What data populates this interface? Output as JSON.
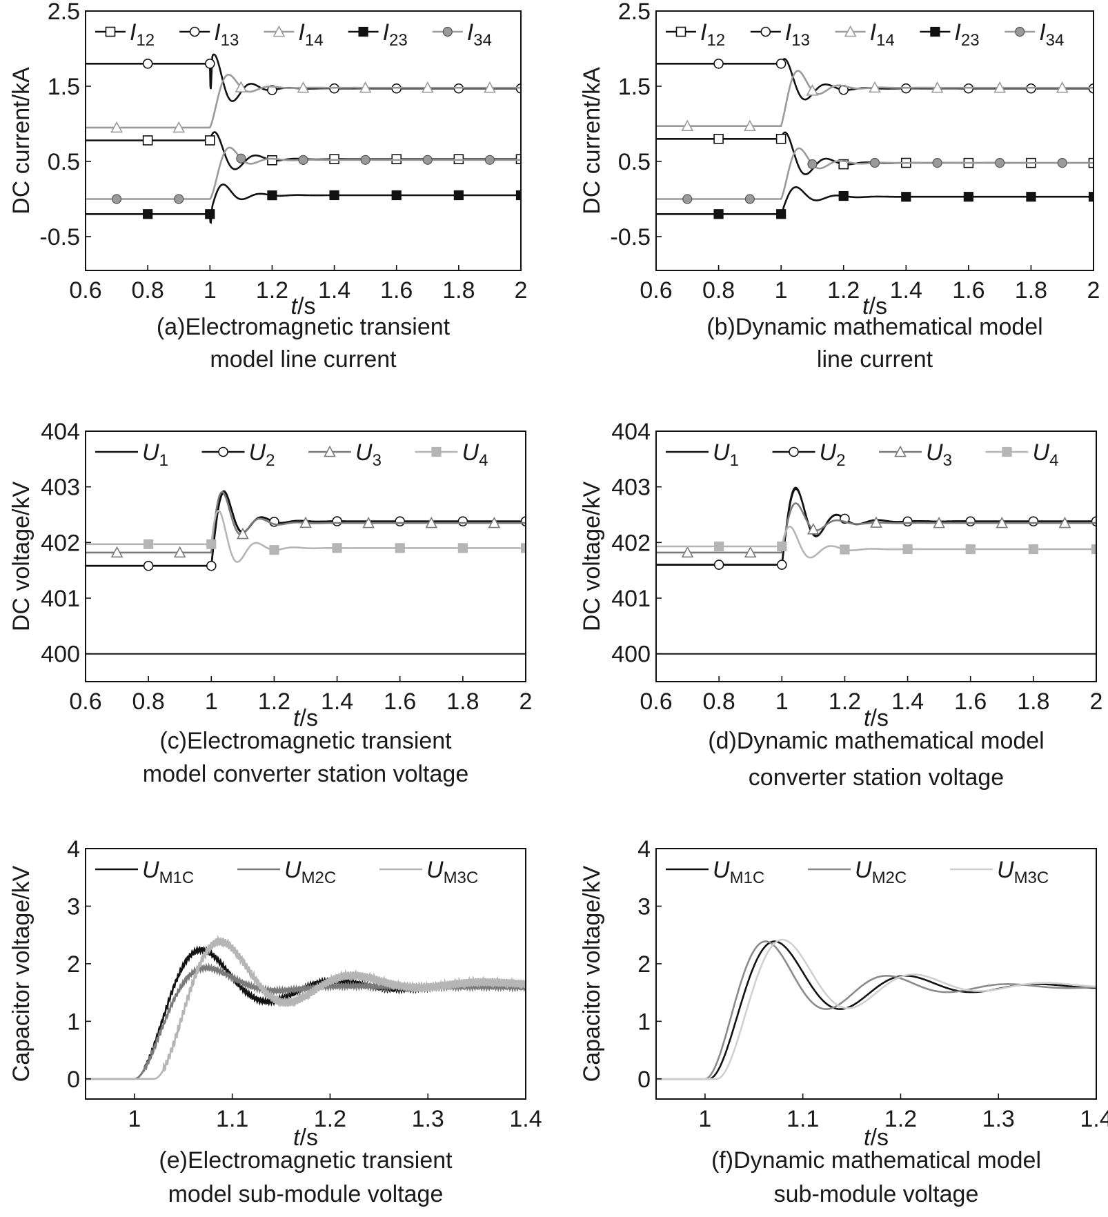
{
  "colors": {
    "black": "#111111",
    "darkgray": "#7a7a7a",
    "gray": "#a6a6a6",
    "lightgray": "#cfcfcf"
  },
  "chart_data": [
    {
      "type": "line",
      "id": "a",
      "caption": [
        "(a)Electromagnetic transient",
        "model line current"
      ],
      "xlabel_italic": "t",
      "xlabel_unit": "/s",
      "ylabel": "DC current/kA",
      "xlim": [
        0.6,
        2
      ],
      "ylim": [
        -0.95,
        2.5
      ],
      "xticks": [
        0.6,
        0.8,
        1,
        1.2,
        1.4,
        1.6,
        1.8,
        2
      ],
      "xtick_labels": [
        "0.6",
        "0.8",
        "1",
        "1.2",
        "1.4",
        "1.6",
        "1.8",
        "2"
      ],
      "yticks": [
        2.5,
        1.5,
        0.5,
        -0.5
      ],
      "ytick_labels": [
        "2.5",
        "1.5",
        "0.5",
        "-0.5"
      ],
      "legend": [
        {
          "main": "I",
          "sub": "12",
          "marker": "square-open",
          "color": "#111111"
        },
        {
          "main": "I",
          "sub": "13",
          "marker": "circle-open",
          "color": "#111111"
        },
        {
          "main": "I",
          "sub": "14",
          "marker": "triangle-open",
          "color": "#9a9a9a"
        },
        {
          "main": "I",
          "sub": "23",
          "marker": "square-filled",
          "color": "#111111"
        },
        {
          "main": "I",
          "sub": "34",
          "marker": "circle-filled",
          "color": "#9a9a9a"
        }
      ],
      "series": [
        {
          "name": "I12",
          "pre": 0.78,
          "post": 0.53,
          "amp": 0.32,
          "wn": 50,
          "zeta": 0.3,
          "dip": 0.0,
          "marker": "square-open",
          "color": "#111111",
          "marker_x": [
            0.8,
            1.0,
            1.2,
            1.4,
            1.6,
            1.8,
            2.0
          ]
        },
        {
          "name": "I13",
          "pre": 1.8,
          "post": 1.47,
          "amp": 0.38,
          "wn": 55,
          "zeta": 0.3,
          "dip": -0.9,
          "marker": "circle-open",
          "color": "#111111",
          "marker_x": [
            0.8,
            1.0,
            1.2,
            1.4,
            1.6,
            1.8,
            2.0
          ]
        },
        {
          "name": "I14",
          "pre": 0.95,
          "post": 1.48,
          "amp": 0.18,
          "wn": 50,
          "zeta": 0.35,
          "dip": 0.0,
          "marker": "triangle-open",
          "color": "#9a9a9a",
          "marker_x": [
            0.7,
            0.9,
            1.1,
            1.3,
            1.5,
            1.7,
            1.9
          ]
        },
        {
          "name": "I23",
          "pre": -0.2,
          "post": 0.05,
          "amp": 0.25,
          "wn": 55,
          "zeta": 0.3,
          "dip": -0.35,
          "marker": "square-filled",
          "color": "#111111",
          "marker_x": [
            0.8,
            1.0,
            1.2,
            1.4,
            1.6,
            1.8,
            2.0
          ]
        },
        {
          "name": "I34",
          "pre": 0.0,
          "post": 0.52,
          "amp": 0.1,
          "wn": 50,
          "zeta": 0.35,
          "dip": 0.0,
          "marker": "circle-filled",
          "color": "#9a9a9a",
          "marker_x": [
            0.7,
            0.9,
            1.1,
            1.3,
            1.5,
            1.7,
            1.9
          ]
        }
      ]
    },
    {
      "type": "line",
      "id": "b",
      "caption": [
        "(b)Dynamic mathematical model",
        "line current"
      ],
      "xlabel_italic": "t",
      "xlabel_unit": "/s",
      "ylabel": "DC current/kA",
      "xlim": [
        0.6,
        2
      ],
      "ylim": [
        -0.95,
        2.5
      ],
      "xticks": [
        0.6,
        0.8,
        1,
        1.2,
        1.4,
        1.6,
        1.8,
        2
      ],
      "xtick_labels": [
        "0.6",
        "0.8",
        "1",
        "1.2",
        "1.4",
        "1.6",
        "1.8",
        "2"
      ],
      "yticks": [
        2.5,
        1.5,
        0.5,
        -0.5
      ],
      "ytick_labels": [
        "2.5",
        "1.5",
        "0.5",
        "-0.5"
      ],
      "legend": [
        {
          "main": "I",
          "sub": "12",
          "marker": "square-open",
          "color": "#111111"
        },
        {
          "main": "I",
          "sub": "13",
          "marker": "circle-open",
          "color": "#111111"
        },
        {
          "main": "I",
          "sub": "14",
          "marker": "triangle-open",
          "color": "#9a9a9a"
        },
        {
          "main": "I",
          "sub": "23",
          "marker": "square-filled",
          "color": "#111111"
        },
        {
          "main": "I",
          "sub": "34",
          "marker": "circle-filled",
          "color": "#9a9a9a"
        }
      ],
      "series": [
        {
          "name": "I12",
          "pre": 0.8,
          "post": 0.48,
          "amp": 0.3,
          "wn": 50,
          "zeta": 0.3,
          "dip": 0.0,
          "marker": "square-open",
          "color": "#111111",
          "marker_x": [
            0.8,
            1.0,
            1.2,
            1.4,
            1.6,
            1.8,
            2.0
          ]
        },
        {
          "name": "I13",
          "pre": 1.8,
          "post": 1.47,
          "amp": 0.25,
          "wn": 50,
          "zeta": 0.3,
          "dip": 0.0,
          "marker": "circle-open",
          "color": "#111111",
          "marker_x": [
            0.8,
            1.0,
            1.2,
            1.4,
            1.6,
            1.8,
            2.0
          ]
        },
        {
          "name": "I14",
          "pre": 0.97,
          "post": 1.48,
          "amp": 0.3,
          "wn": 50,
          "zeta": 0.3,
          "dip": 0.0,
          "marker": "triangle-open",
          "color": "#9a9a9a",
          "marker_x": [
            0.7,
            0.9,
            1.1,
            1.3,
            1.5,
            1.7,
            1.9
          ]
        },
        {
          "name": "I23",
          "pre": -0.2,
          "post": 0.03,
          "amp": 0.22,
          "wn": 50,
          "zeta": 0.3,
          "dip": -0.1,
          "marker": "square-filled",
          "color": "#111111",
          "marker_x": [
            0.8,
            1.0,
            1.2,
            1.4,
            1.6,
            1.8,
            2.0
          ]
        },
        {
          "name": "I34",
          "pre": 0.0,
          "post": 0.48,
          "amp": 0.2,
          "wn": 50,
          "zeta": 0.3,
          "dip": 0.0,
          "marker": "circle-filled",
          "color": "#9a9a9a",
          "marker_x": [
            0.7,
            0.9,
            1.1,
            1.3,
            1.5,
            1.7,
            1.9
          ]
        }
      ]
    },
    {
      "type": "line",
      "id": "c",
      "caption": [
        "(c)Electromagnetic transient",
        "model converter station voltage"
      ],
      "xlabel_italic": "t",
      "xlabel_unit": "/s",
      "ylabel": "DC voltage/kV",
      "xlim": [
        0.6,
        2
      ],
      "ylim": [
        399.5,
        404
      ],
      "xticks": [
        0.6,
        0.8,
        1,
        1.2,
        1.4,
        1.6,
        1.8,
        2
      ],
      "xtick_labels": [
        "0.6",
        "0.8",
        "1",
        "1.2",
        "1.4",
        "1.6",
        "1.8",
        "2"
      ],
      "yticks": [
        404,
        403,
        402,
        401,
        400
      ],
      "ytick_labels": [
        "404",
        "403",
        "402",
        "401",
        "400"
      ],
      "legend": [
        {
          "main": "U",
          "sub": "1",
          "marker": "none",
          "color": "#111111"
        },
        {
          "main": "U",
          "sub": "2",
          "marker": "circle-open",
          "color": "#111111"
        },
        {
          "main": "U",
          "sub": "3",
          "marker": "triangle-open",
          "color": "#7a7a7a"
        },
        {
          "main": "U",
          "sub": "4",
          "marker": "square-filled",
          "color": "#b5b5b5"
        }
      ],
      "series": [
        {
          "name": "U1",
          "pre": 401.58,
          "post": 402.38,
          "amp": 1.0,
          "wn": 55,
          "zeta": 0.3,
          "dip": 0.0,
          "marker": "none",
          "color": "#111111",
          "marker_x": []
        },
        {
          "name": "U2",
          "pre": 401.58,
          "post": 402.38,
          "amp": 0.95,
          "wn": 55,
          "zeta": 0.3,
          "dip": 0.0,
          "marker": "circle-open",
          "color": "#111111",
          "marker_x": [
            0.8,
            1.0,
            1.2,
            1.4,
            1.6,
            1.8,
            2.0
          ]
        },
        {
          "name": "U3",
          "pre": 401.82,
          "post": 402.35,
          "amp": 1.05,
          "wn": 55,
          "zeta": 0.3,
          "dip": 0.0,
          "marker": "triangle-open",
          "color": "#7a7a7a",
          "marker_x": [
            0.7,
            0.9,
            1.1,
            1.3,
            1.5,
            1.7,
            1.9
          ]
        },
        {
          "name": "U4",
          "pre": 401.97,
          "post": 401.9,
          "amp": 1.0,
          "wn": 55,
          "zeta": 0.3,
          "dip": 0.0,
          "marker": "square-filled",
          "color": "#b5b5b5",
          "marker_x": [
            0.8,
            1.0,
            1.2,
            1.4,
            1.6,
            1.8,
            2.0
          ]
        },
        {
          "name": "base",
          "pre": 400.0,
          "post": 400.0,
          "amp": 0.0,
          "wn": 50,
          "zeta": 0.3,
          "dip": 0.0,
          "marker": "none",
          "color": "#111111",
          "marker_x": []
        }
      ]
    },
    {
      "type": "line",
      "id": "d",
      "caption": [
        "(d)Dynamic mathematical model",
        "converter station voltage"
      ],
      "xlabel_italic": "t",
      "xlabel_unit": "/s",
      "ylabel": "DC voltage/kV",
      "xlim": [
        0.6,
        2
      ],
      "ylim": [
        399.5,
        404
      ],
      "xticks": [
        0.6,
        0.8,
        1,
        1.2,
        1.4,
        1.6,
        1.8,
        2
      ],
      "xtick_labels": [
        "0.6",
        "0.8",
        "1",
        "1.2",
        "1.4",
        "1.6",
        "1.8",
        "2"
      ],
      "yticks": [
        404,
        403,
        402,
        401,
        400
      ],
      "ytick_labels": [
        "404",
        "403",
        "402",
        "401",
        "400"
      ],
      "legend": [
        {
          "main": "U",
          "sub": "1",
          "marker": "none",
          "color": "#111111"
        },
        {
          "main": "U",
          "sub": "2",
          "marker": "circle-open",
          "color": "#111111"
        },
        {
          "main": "U",
          "sub": "3",
          "marker": "triangle-open",
          "color": "#7a7a7a"
        },
        {
          "main": "U",
          "sub": "4",
          "marker": "square-filled",
          "color": "#b5b5b5"
        }
      ],
      "series": [
        {
          "name": "U1",
          "pre": 401.6,
          "post": 402.38,
          "amp": 0.95,
          "wn": 50,
          "zeta": 0.25,
          "dip": 0.0,
          "marker": "none",
          "color": "#111111",
          "marker_x": []
        },
        {
          "name": "U2",
          "pre": 401.6,
          "post": 402.38,
          "amp": 0.9,
          "wn": 50,
          "zeta": 0.25,
          "dip": 0.0,
          "marker": "circle-open",
          "color": "#111111",
          "marker_x": [
            0.8,
            1.0,
            1.2,
            1.4,
            1.6,
            1.8,
            2.0
          ]
        },
        {
          "name": "U3",
          "pre": 401.82,
          "post": 402.35,
          "amp": 0.65,
          "wn": 50,
          "zeta": 0.3,
          "dip": 0.0,
          "marker": "triangle-open",
          "color": "#7a7a7a",
          "marker_x": [
            0.7,
            0.9,
            1.1,
            1.3,
            1.5,
            1.7,
            1.9
          ]
        },
        {
          "name": "U4",
          "pre": 401.93,
          "post": 401.88,
          "amp": 0.6,
          "wn": 50,
          "zeta": 0.3,
          "dip": 0.0,
          "marker": "square-filled",
          "color": "#b5b5b5",
          "marker_x": [
            0.8,
            1.0,
            1.2,
            1.4,
            1.6,
            1.8,
            2.0
          ]
        },
        {
          "name": "base",
          "pre": 400.0,
          "post": 400.0,
          "amp": 0.0,
          "wn": 50,
          "zeta": 0.3,
          "dip": 0.0,
          "marker": "none",
          "color": "#111111",
          "marker_x": []
        }
      ]
    },
    {
      "type": "line",
      "id": "e",
      "caption": [
        "(e)Electromagnetic transient",
        "model sub-module voltage"
      ],
      "xlabel_italic": "t",
      "xlabel_unit": "/s",
      "ylabel": "Capacitor voltage/kV",
      "xlim": [
        0.95,
        1.4
      ],
      "ylim": [
        -0.35,
        4
      ],
      "xticks": [
        1,
        1.1,
        1.2,
        1.3,
        1.4
      ],
      "xtick_labels": [
        "1",
        "1.1",
        "1.2",
        "1.3",
        "1.4"
      ],
      "yticks": [
        4,
        3,
        2,
        1,
        0
      ],
      "ytick_labels": [
        "4",
        "3",
        "2",
        "1",
        "0"
      ],
      "legend": [
        {
          "main": "U",
          "sub": "M1C",
          "marker": "none",
          "color": "#111111"
        },
        {
          "main": "U",
          "sub": "M2C",
          "marker": "none",
          "color": "#7a7a7a"
        },
        {
          "main": "U",
          "sub": "M3C",
          "marker": "none",
          "color": "#b5b5b5"
        }
      ],
      "series": [
        {
          "name": "UM1C",
          "pre": 0.0,
          "post": 1.6,
          "amp": 0.0,
          "wn": 48,
          "zeta": 0.28,
          "dip": 0.0,
          "t0": 1.0,
          "noise": 0.04,
          "marker": "none",
          "color": "#111111",
          "marker_x": []
        },
        {
          "name": "UM2C",
          "pre": 0.0,
          "post": 1.6,
          "amp": 0.0,
          "wn": 48,
          "zeta": 0.45,
          "dip": 0.0,
          "t0": 1.0,
          "noise": 0.04,
          "marker": "none",
          "color": "#7a7a7a",
          "marker_x": []
        },
        {
          "name": "UM3C",
          "pre": 0.0,
          "post": 1.65,
          "amp": 0.0,
          "wn": 48,
          "zeta": 0.25,
          "dip": 0.0,
          "t0": 1.02,
          "noise": 0.07,
          "marker": "none",
          "color": "#b5b5b5",
          "marker_x": []
        }
      ]
    },
    {
      "type": "line",
      "id": "f",
      "caption": [
        "(f)Dynamic mathematical model",
        "sub-module voltage"
      ],
      "xlabel_italic": "t",
      "xlabel_unit": "/s",
      "ylabel": "Capacitor voltage/kV",
      "xlim": [
        0.95,
        1.4
      ],
      "ylim": [
        -0.35,
        4
      ],
      "xticks": [
        1,
        1.1,
        1.2,
        1.3,
        1.4
      ],
      "xtick_labels": [
        "1",
        "1.1",
        "1.2",
        "1.3",
        "1.4"
      ],
      "yticks": [
        4,
        3,
        2,
        1,
        0
      ],
      "ytick_labels": [
        "4",
        "3",
        "2",
        "1",
        "0"
      ],
      "legend": [
        {
          "main": "U",
          "sub": "M1C",
          "marker": "none",
          "color": "#111111"
        },
        {
          "main": "U",
          "sub": "M2C",
          "marker": "none",
          "color": "#8a8a8a"
        },
        {
          "main": "U",
          "sub": "M3C",
          "marker": "none",
          "color": "#d0d0d0"
        }
      ],
      "series": [
        {
          "name": "UM1C",
          "pre": 0.0,
          "post": 1.6,
          "amp": 0.0,
          "wn": 48,
          "zeta": 0.22,
          "dip": 0.0,
          "t0": 1.004,
          "noise": 0.0,
          "marker": "none",
          "color": "#111111",
          "marker_x": []
        },
        {
          "name": "UM2C",
          "pre": 0.0,
          "post": 1.6,
          "amp": 0.0,
          "wn": 52,
          "zeta": 0.22,
          "dip": 0.0,
          "t0": 1.0,
          "noise": 0.0,
          "marker": "none",
          "color": "#8a8a8a",
          "marker_x": []
        },
        {
          "name": "UM3C",
          "pre": 0.0,
          "post": 1.62,
          "amp": 0.0,
          "wn": 48,
          "zeta": 0.22,
          "dip": 0.0,
          "t0": 1.012,
          "noise": 0.0,
          "marker": "none",
          "color": "#d0d0d0",
          "marker_x": []
        }
      ]
    }
  ]
}
